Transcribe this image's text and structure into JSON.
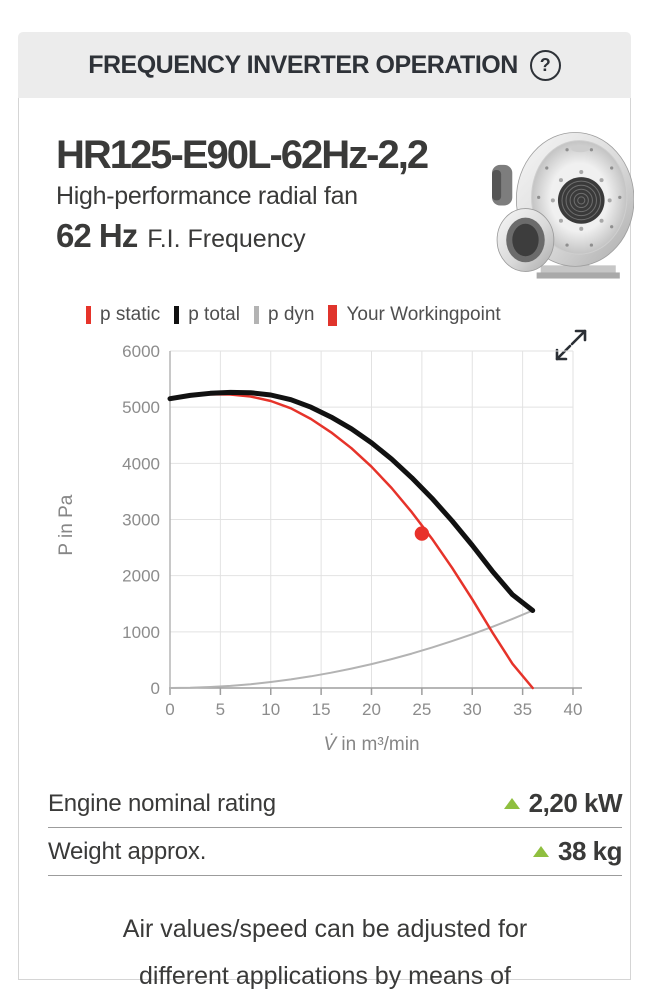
{
  "header": {
    "title": "FREQUENCY INVERTER OPERATION",
    "help_icon": "?"
  },
  "product": {
    "model": "HR125-E90L-62Hz-2,2",
    "type": "High-performance radial fan",
    "frequency_value": "62 Hz",
    "frequency_label": "F.I. Frequency",
    "image": "silver radial fan"
  },
  "chart_data": {
    "type": "line",
    "title": "",
    "xlabel": "V̇ in m³/min",
    "xlabel_symbol": "V̇",
    "xlabel_rest": " in m³/min",
    "ylabel": "P in Pa",
    "xlim": [
      0,
      40
    ],
    "ylim": [
      0,
      6000
    ],
    "x_ticks": [
      0,
      5,
      10,
      15,
      20,
      25,
      30,
      35,
      40
    ],
    "y_ticks": [
      0,
      1000,
      2000,
      3000,
      4000,
      5000,
      6000
    ],
    "grid": true,
    "legend_position": "top",
    "legend": [
      {
        "label": "p static",
        "color": "#e6332a"
      },
      {
        "label": "p total",
        "color": "#111111"
      },
      {
        "label": "p dyn",
        "color": "#b3b3b3"
      },
      {
        "label": "Your Workingpoint",
        "color": "#e0342c"
      }
    ],
    "x": [
      0,
      2,
      4,
      6,
      8,
      10,
      12,
      14,
      16,
      18,
      20,
      22,
      24,
      26,
      28,
      30,
      32,
      34,
      36
    ],
    "series": [
      {
        "name": "p dyn",
        "color": "#b3b3b3",
        "width": 2,
        "values": [
          0,
          4,
          17,
          38,
          68,
          106,
          153,
          209,
          273,
          345,
          426,
          515,
          613,
          720,
          835,
          958,
          1090,
          1231,
          1380
        ]
      },
      {
        "name": "p static",
        "color": "#e6332a",
        "width": 2.5,
        "values": [
          5150,
          5205,
          5230,
          5225,
          5190,
          5110,
          4980,
          4790,
          4550,
          4270,
          3940,
          3560,
          3130,
          2660,
          2140,
          1580,
          990,
          430,
          0
        ]
      },
      {
        "name": "p total",
        "color": "#111111",
        "width": 5,
        "values": [
          5150,
          5209,
          5247,
          5263,
          5258,
          5216,
          5133,
          4999,
          4823,
          4615,
          4366,
          4075,
          3743,
          3380,
          2975,
          2538,
          2080,
          1661,
          1380
        ]
      }
    ],
    "workingpoint": {
      "x": 25,
      "y": 2750,
      "color": "#e8312a"
    }
  },
  "specs": [
    {
      "label": "Engine nominal rating",
      "value": "2,20 kW"
    },
    {
      "label": "Weight approx.",
      "value": "38 kg"
    }
  ],
  "description": "Air values/speed can be adjusted for different applications by means of",
  "colors": {
    "header_bg": "#ececec",
    "panel_border": "#d5d5d5",
    "text_dark": "#3a3a39",
    "text_gray": "#8c8c8c",
    "red": "#e6332a",
    "green": "#8fbf3f",
    "grid": "#e2e2e2",
    "axis": "#9e9e9e"
  }
}
